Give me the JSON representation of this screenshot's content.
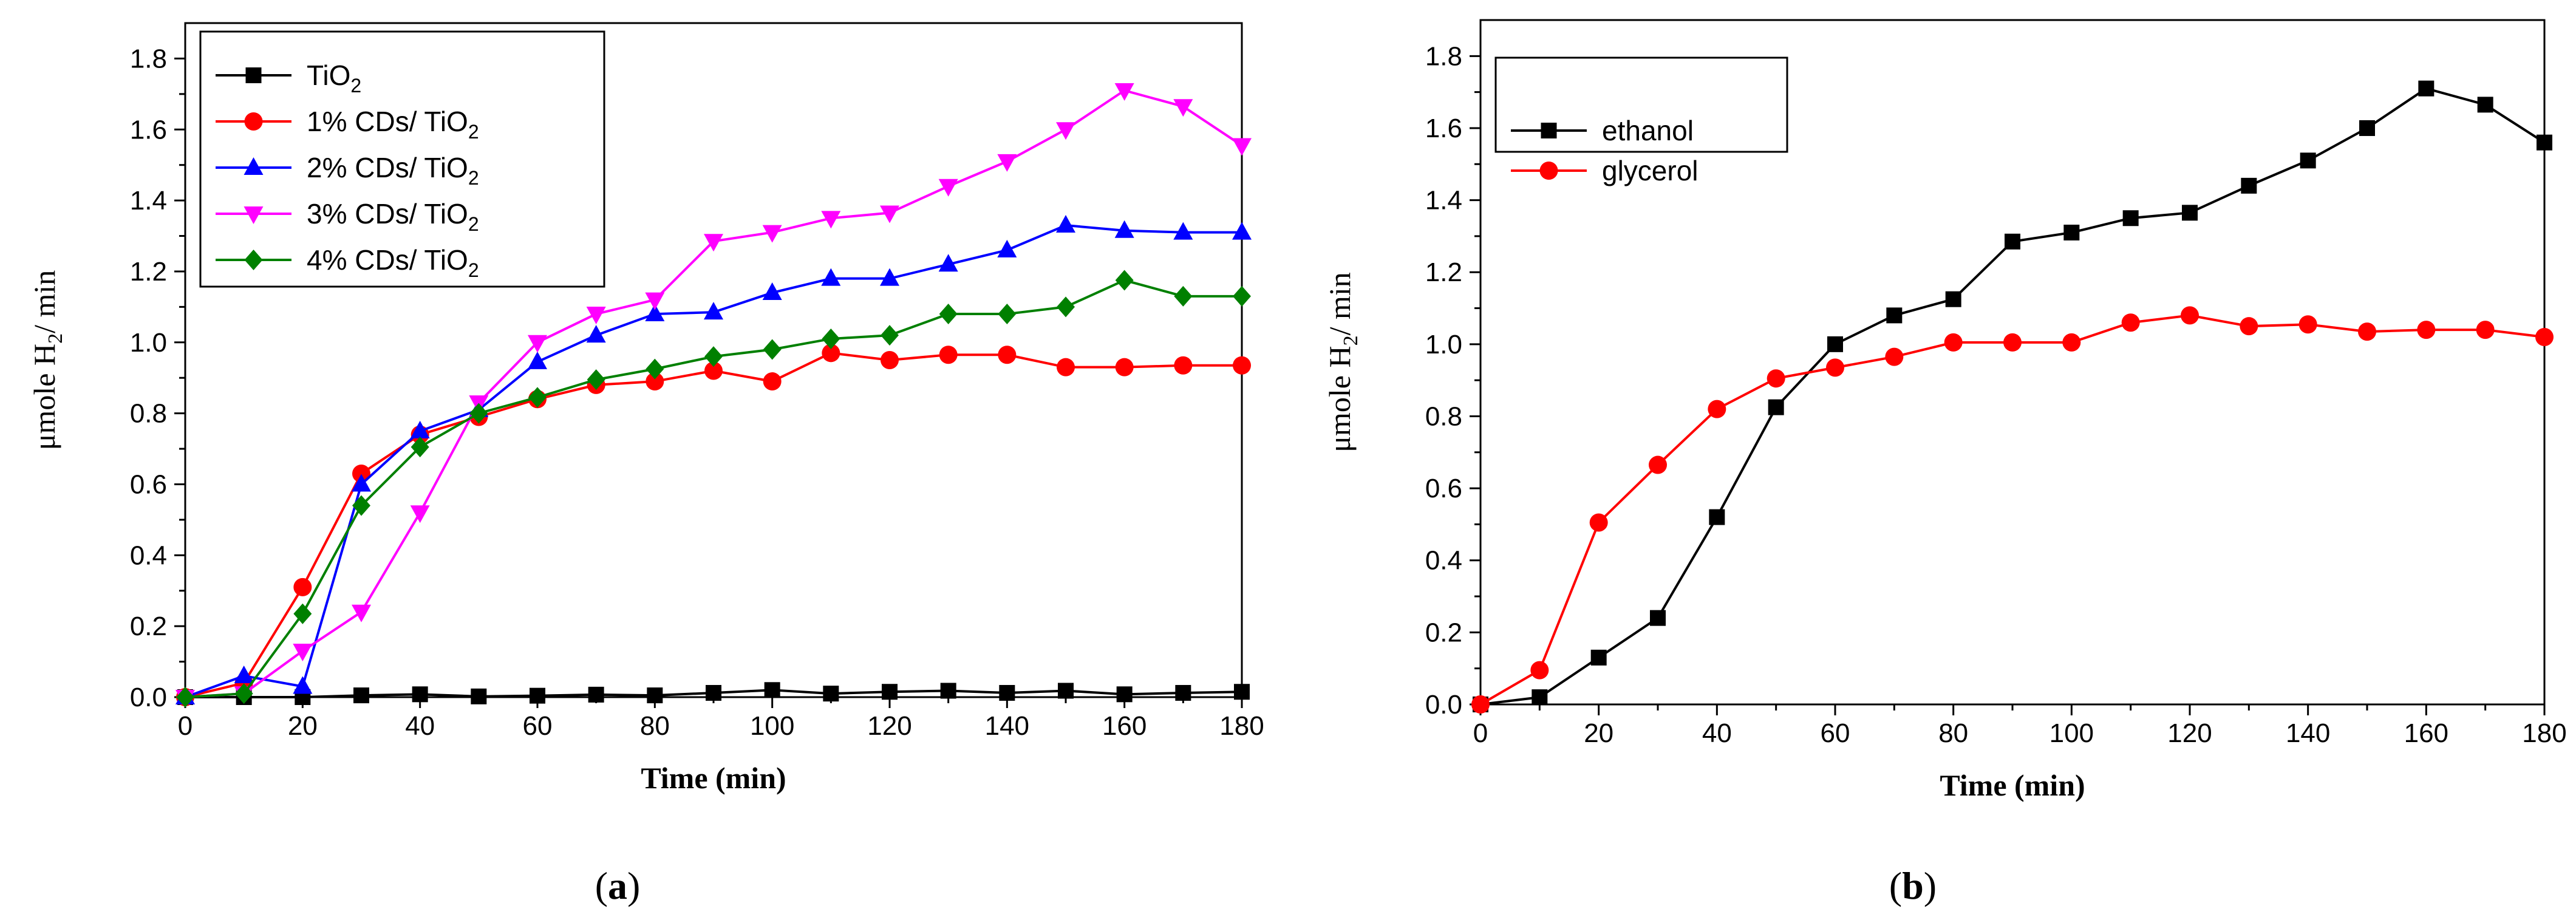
{
  "panels": [
    {
      "id": "a",
      "caption_open": "(",
      "caption_letter": "a",
      "caption_close": ")",
      "ylabel_main": "μmole H",
      "ylabel_sub": "2",
      "ylabel_rest": "/ min",
      "xlabel": "Time (min)"
    },
    {
      "id": "b",
      "caption_open": "(",
      "caption_letter": "b",
      "caption_close": ")",
      "ylabel_main": "μmole H",
      "ylabel_sub": "2",
      "ylabel_rest": "/ min",
      "xlabel": "Time (min)"
    }
  ],
  "chart_data": [
    {
      "type": "line",
      "panel": "a",
      "title": "",
      "xlabel": "Time (min)",
      "ylabel": "μmole H2/ min",
      "xlim": [
        0,
        180
      ],
      "ylim": [
        0,
        1.9
      ],
      "xticks": [
        0,
        20,
        40,
        60,
        80,
        100,
        120,
        140,
        160,
        180
      ],
      "yticks": [
        0.0,
        0.2,
        0.4,
        0.6,
        0.8,
        1.0,
        1.2,
        1.4,
        1.6,
        1.8
      ],
      "legend_position": "top-left",
      "x": [
        0,
        10,
        20,
        30,
        40,
        50,
        60,
        70,
        80,
        90,
        100,
        110,
        120,
        130,
        140,
        150,
        160,
        170,
        180
      ],
      "series": [
        {
          "name": "TiO2",
          "label_main": "TiO",
          "label_sub": "2",
          "color": "#000000",
          "marker": "square",
          "values": [
            0,
            0,
            0,
            0.005,
            0.008,
            0.002,
            0.004,
            0.007,
            0.005,
            0.012,
            0.02,
            0.01,
            0.015,
            0.018,
            0.012,
            0.018,
            0.008,
            0.012,
            0.015
          ]
        },
        {
          "name": "1% CDs/ TiO2",
          "label_main": "1% CDs/ TiO",
          "label_sub": "2",
          "color": "#ff0000",
          "marker": "circle",
          "values": [
            0,
            0.04,
            0.31,
            0.63,
            0.74,
            0.79,
            0.84,
            0.88,
            0.89,
            0.92,
            0.89,
            0.97,
            0.95,
            0.965,
            0.965,
            0.93,
            0.93,
            0.935,
            0.935
          ]
        },
        {
          "name": "2% CDs/ TiO2",
          "label_main": "2% CDs/ TiO",
          "label_sub": "2",
          "color": "#0000ff",
          "marker": "triangle-up",
          "values": [
            0,
            0.06,
            0.03,
            0.6,
            0.75,
            0.81,
            0.945,
            1.02,
            1.08,
            1.085,
            1.14,
            1.18,
            1.18,
            1.22,
            1.26,
            1.33,
            1.315,
            1.31,
            1.31
          ]
        },
        {
          "name": "3% CDs/ TiO2",
          "label_main": "3% CDs/ TiO",
          "label_sub": "2",
          "color": "#ff00ff",
          "marker": "triangle-down",
          "values": [
            0,
            0.01,
            0.13,
            0.24,
            0.52,
            0.83,
            1.0,
            1.08,
            1.12,
            1.285,
            1.31,
            1.35,
            1.365,
            1.44,
            1.51,
            1.6,
            1.71,
            1.665,
            1.555
          ]
        },
        {
          "name": "4% CDs/ TiO2",
          "label_main": "4% CDs/ TiO",
          "label_sub": "2",
          "color": "#008000",
          "marker": "diamond",
          "values": [
            0,
            0.01,
            0.235,
            0.54,
            0.705,
            0.8,
            0.845,
            0.895,
            0.925,
            0.96,
            0.98,
            1.01,
            1.02,
            1.08,
            1.08,
            1.1,
            1.175,
            1.13,
            1.13
          ]
        }
      ]
    },
    {
      "type": "line",
      "panel": "b",
      "title": "",
      "xlabel": "Time (min)",
      "ylabel": "μmole H2/ min",
      "xlim": [
        0,
        180
      ],
      "ylim": [
        0,
        1.9
      ],
      "xticks": [
        0,
        20,
        40,
        60,
        80,
        100,
        120,
        140,
        160,
        180
      ],
      "yticks": [
        0.0,
        0.2,
        0.4,
        0.6,
        0.8,
        1.0,
        1.2,
        1.4,
        1.6,
        1.8
      ],
      "legend_position": "top-left",
      "x": [
        0,
        10,
        20,
        30,
        40,
        50,
        60,
        70,
        80,
        90,
        100,
        110,
        120,
        130,
        140,
        150,
        160,
        170,
        180
      ],
      "series": [
        {
          "name": "ethanol",
          "label_main": "ethanol",
          "label_sub": "",
          "color": "#000000",
          "marker": "square",
          "values": [
            0,
            0.02,
            0.13,
            0.24,
            0.52,
            0.825,
            1.0,
            1.08,
            1.125,
            1.285,
            1.31,
            1.35,
            1.365,
            1.44,
            1.51,
            1.6,
            1.71,
            1.665,
            1.56
          ]
        },
        {
          "name": "glycerol",
          "label_main": "glycerol",
          "label_sub": "",
          "color": "#ff0000",
          "marker": "circle",
          "values": [
            0,
            0.095,
            0.505,
            0.665,
            0.82,
            0.905,
            0.935,
            0.965,
            1.005,
            1.005,
            1.005,
            1.06,
            1.08,
            1.05,
            1.055,
            1.035,
            1.04,
            1.04,
            1.02
          ]
        }
      ]
    }
  ]
}
